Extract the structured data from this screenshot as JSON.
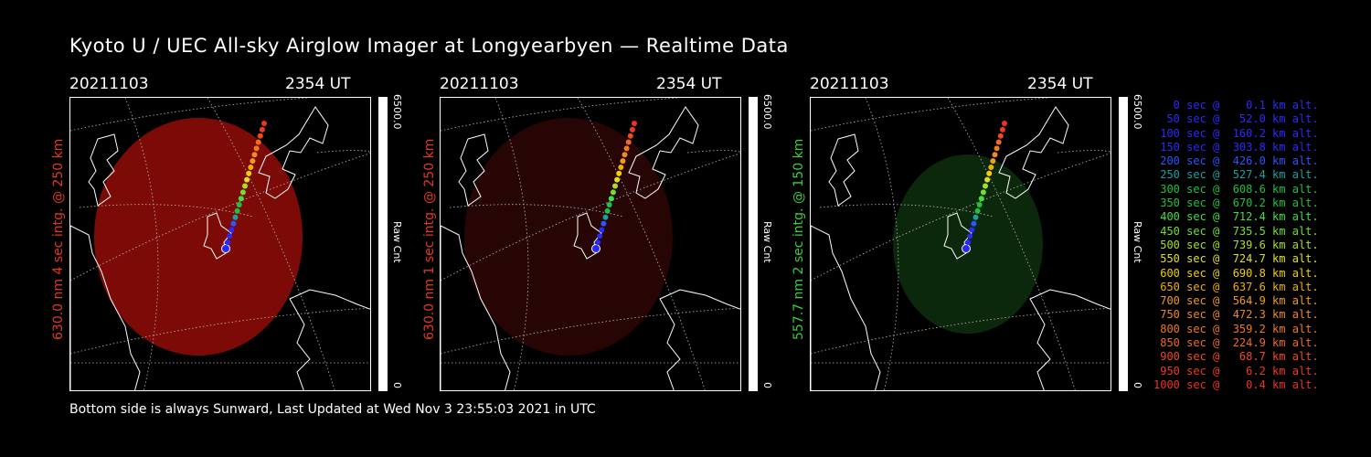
{
  "title": "Kyoto U / UEC All-sky Airglow Imager at Longyearbyen — Realtime Data",
  "footer": "Bottom side is always Sunward, Last Updated at Wed Nov  3 23:55:03 2021 in UTC",
  "panels": [
    {
      "date": "20211103",
      "time": "2354 UT",
      "side_label": "630.0 nm 4 sec intg. @ 250 km",
      "side_color": "#e03a20",
      "cbar_max": "6500.0",
      "cbar_min": "0",
      "cbar_label": "Raw Cnt",
      "glow": "#8a0c08",
      "glow_opacity": 0.9
    },
    {
      "date": "20211103",
      "time": "2354 UT",
      "side_label": "630.0 nm 1 sec intg. @ 250 km",
      "side_color": "#e03a20",
      "cbar_max": "6500.0",
      "cbar_min": "0",
      "cbar_label": "Raw Cnt",
      "glow": "#2a0604",
      "glow_opacity": 0.9
    },
    {
      "date": "20211103",
      "time": "2354 UT",
      "side_label": "557.7 nm 2 sec intg. @ 150 km",
      "side_color": "#3ad03a",
      "cbar_max": "6500.0",
      "cbar_min": "0",
      "cbar_label": "Raw Cnt",
      "glow": "#0d2a0d",
      "glow_opacity": 0.95
    }
  ],
  "legend": [
    {
      "text": "   0 sec @    0.1 km alt.",
      "color": "#2a2aff"
    },
    {
      "text": "  50 sec @   52.0 km alt.",
      "color": "#2a2aff"
    },
    {
      "text": " 100 sec @  160.2 km alt.",
      "color": "#2a2aff"
    },
    {
      "text": " 150 sec @  303.8 km alt.",
      "color": "#2a2aff"
    },
    {
      "text": " 200 sec @  426.0 km alt.",
      "color": "#2a55ff"
    },
    {
      "text": " 250 sec @  527.4 km alt.",
      "color": "#1aa0a0"
    },
    {
      "text": " 300 sec @  608.6 km alt.",
      "color": "#20c040"
    },
    {
      "text": " 350 sec @  670.2 km alt.",
      "color": "#20c040"
    },
    {
      "text": " 400 sec @  712.4 km alt.",
      "color": "#40e040"
    },
    {
      "text": " 450 sec @  735.5 km alt.",
      "color": "#70e030"
    },
    {
      "text": " 500 sec @  739.6 km alt.",
      "color": "#a8e020"
    },
    {
      "text": " 550 sec @  724.7 km alt.",
      "color": "#e0e020"
    },
    {
      "text": " 600 sec @  690.8 km alt.",
      "color": "#f0d000"
    },
    {
      "text": " 650 sec @  637.6 km alt.",
      "color": "#f0b000"
    },
    {
      "text": " 700 sec @  564.9 km alt.",
      "color": "#f09a20"
    },
    {
      "text": " 750 sec @  472.3 km alt.",
      "color": "#f08a20"
    },
    {
      "text": " 800 sec @  359.2 km alt.",
      "color": "#f07a20"
    },
    {
      "text": " 850 sec @  224.9 km alt.",
      "color": "#f06a20"
    },
    {
      "text": " 900 sec @   68.7 km alt.",
      "color": "#f04a20"
    },
    {
      "text": " 950 sec @    6.2 km alt.",
      "color": "#f03a20"
    },
    {
      "text": "1000 sec @    0.4 km alt.",
      "color": "#f03020"
    }
  ]
}
